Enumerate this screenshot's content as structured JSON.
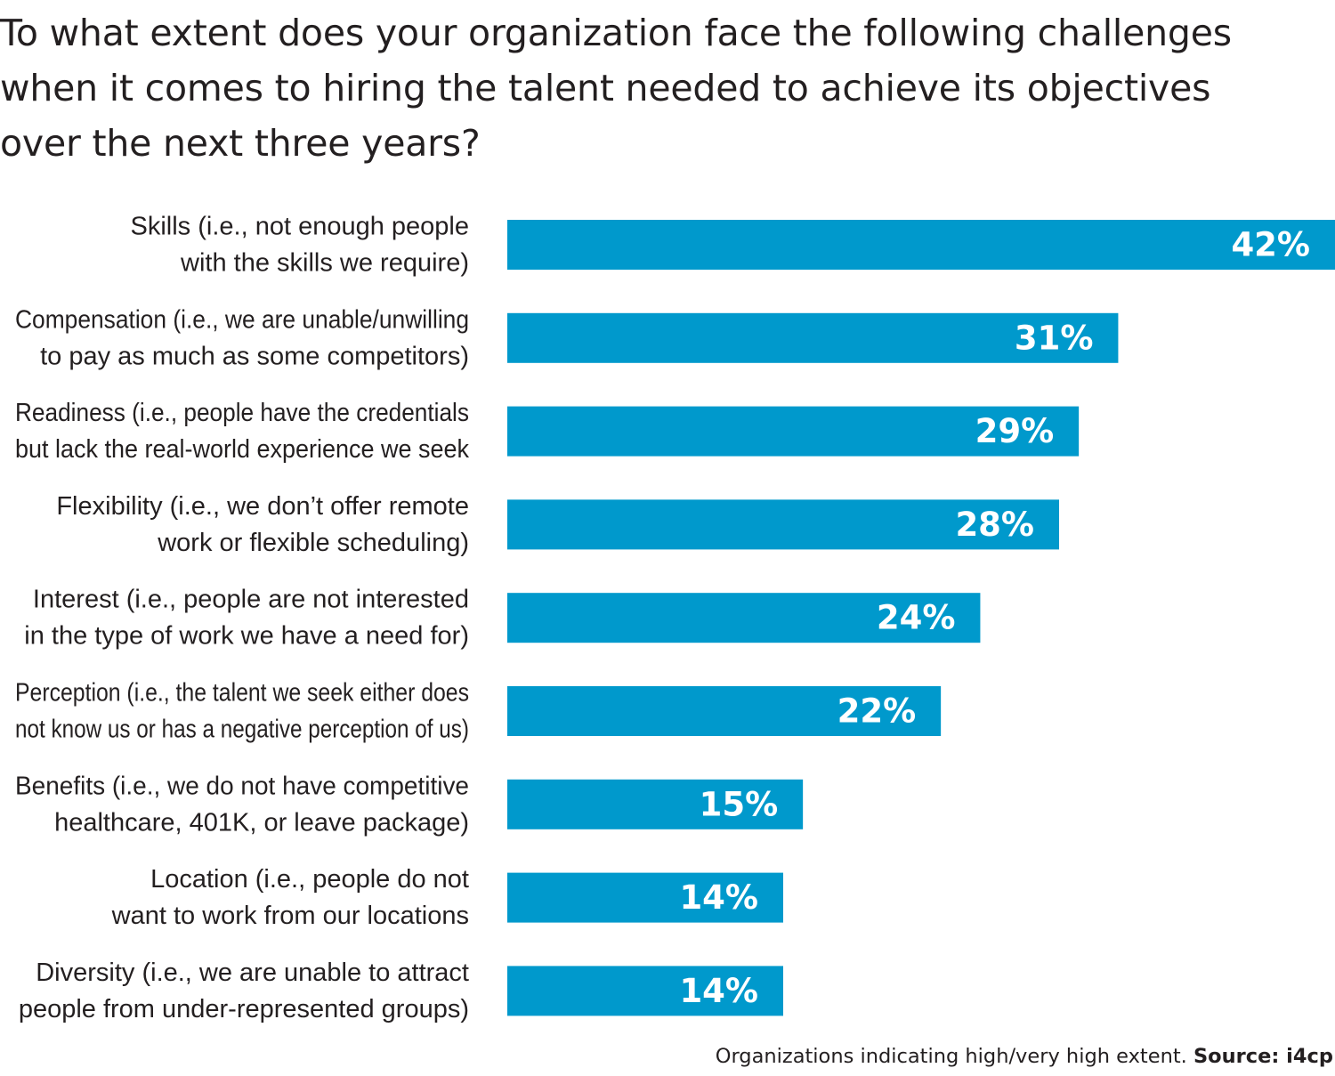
{
  "title_lines": [
    "To what extent does your organization face the following challenges",
    "when it comes to hiring the talent needed to achieve its objectives",
    "over the next three years?"
  ],
  "footnote": {
    "text": "Organizations indicating high/very high extent.",
    "source": "Source: i4cp"
  },
  "colors": {
    "bar": "#0099cc",
    "value_label": "#ffffff",
    "text": "#231f20"
  },
  "chart_data": {
    "type": "bar",
    "orientation": "horizontal",
    "categories": [
      [
        "Skills (i.e., not enough people",
        "with the skills we require)"
      ],
      [
        "Compensation (i.e., we are unable/unwilling",
        "to pay as much as some competitors)"
      ],
      [
        "Readiness (i.e., people have the credentials",
        "but lack the real-world experience we seek"
      ],
      [
        "Flexibility (i.e., we don’t offer remote",
        "work or flexible scheduling)"
      ],
      [
        "Interest (i.e., people are not interested",
        "in the type of work we have a need for)"
      ],
      [
        "Perception (i.e., the talent we seek either does",
        "not know us or has a negative perception of us)"
      ],
      [
        "Benefits (i.e., we do not have competitive",
        "healthcare, 401K, or leave package)"
      ],
      [
        "Location (i.e., people do not",
        "want to work from our locations"
      ],
      [
        "Diversity (i.e., we are unable to attract",
        "people from under-represented groups)"
      ]
    ],
    "values": [
      42,
      31,
      29,
      28,
      24,
      22,
      15,
      14,
      14
    ],
    "value_labels": [
      "42%",
      "31%",
      "29%",
      "28%",
      "24%",
      "22%",
      "15%",
      "14%",
      "14%"
    ],
    "unit": "%",
    "xlim": [
      0,
      42
    ],
    "grid": false,
    "legend": "none"
  }
}
